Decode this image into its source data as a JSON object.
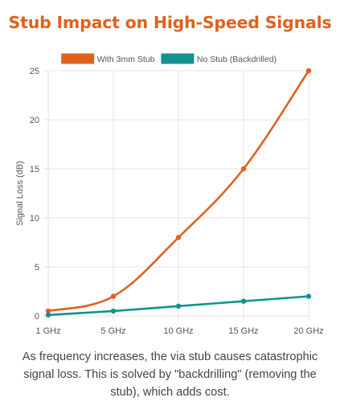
{
  "header": {
    "title": "Stub Impact on High-Speed Signals"
  },
  "caption": {
    "text": "As frequency increases, the via stub causes catastrophic signal loss. This is solved by \"backdrilling\" (removing the stub), which adds cost."
  },
  "colors": {
    "title": "#e0611f",
    "series_stub": "#e0611f",
    "series_backdrilled": "#12938f",
    "grid": "#e3e3e3",
    "axis_text": "#555555"
  },
  "chart_data": {
    "type": "line",
    "title": "",
    "xlabel": "",
    "ylabel": "Signal Loss (dB)",
    "categories": [
      "1 GHz",
      "5 GHz",
      "10 GHz",
      "15 GHz",
      "20 GHz"
    ],
    "ylim": [
      0,
      25
    ],
    "yticks": [
      0,
      5,
      10,
      15,
      20,
      25
    ],
    "grid": true,
    "legend_position": "top",
    "series": [
      {
        "name": "With 3mm Stub",
        "color": "#e0611f",
        "values": [
          0.5,
          2,
          8,
          15,
          25
        ]
      },
      {
        "name": "No Stub (Backdrilled)",
        "color": "#12938f",
        "values": [
          0.1,
          0.5,
          1,
          1.5,
          2
        ]
      }
    ]
  }
}
